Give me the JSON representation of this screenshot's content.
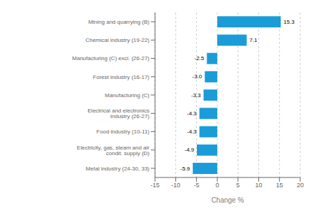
{
  "chart_data": {
    "type": "bar",
    "orientation": "horizontal",
    "categories": [
      "Metal industry (24-30, 33)",
      "Electricity, gas, steam and air condit. supply (D)",
      "Food industry (10-11)",
      "Electrical and electronics industry (26-27)",
      "Manufacturing (C)",
      "Forest industry (16-17)",
      "Manufacturing (C) excl. (26-27)",
      "Chemical industry (19-22)",
      "Mining and quarrying (B)"
    ],
    "values": [
      -5.9,
      -4.9,
      -4.3,
      -4.3,
      -3.3,
      -3.0,
      -2.5,
      7.1,
      15.3
    ],
    "value_labels": [
      "-5.9",
      "-4.9",
      "-4.3",
      "-4.3",
      "-3.3",
      "-3.0",
      "-2.5",
      "7.1",
      "15.3"
    ],
    "data_labels": true,
    "color": "#1a9cd8",
    "xlabel": "Change %",
    "xlim": [
      -15,
      20
    ],
    "xticks": [
      -15,
      -10,
      -5,
      0,
      5,
      10,
      15,
      20
    ],
    "grid": true
  }
}
